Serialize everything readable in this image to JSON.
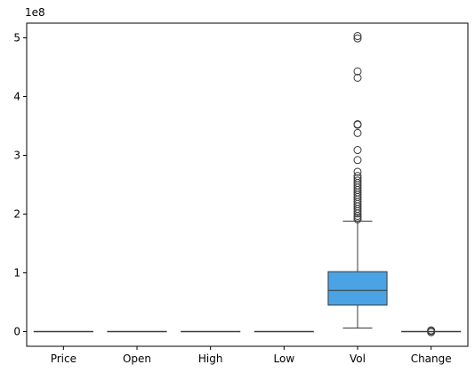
{
  "chart_data": {
    "type": "box",
    "title": "",
    "xlabel": "",
    "ylabel": "",
    "y_offset_label": "1e8",
    "ylim": [
      -0.25,
      5.25
    ],
    "yticks": [
      0,
      1,
      2,
      3,
      4,
      5
    ],
    "ytick_labels": [
      "0",
      "1",
      "2",
      "3",
      "4",
      "5"
    ],
    "grid": false,
    "legend": false,
    "colors": {
      "fill": "#4ba3e3",
      "line": "#3a3a3a",
      "axis": "#000000"
    },
    "categories": [
      "Price",
      "Open",
      "High",
      "Low",
      "Vol",
      "Change"
    ],
    "boxes": [
      {
        "name": "Price",
        "whislo": 0,
        "q1": 0,
        "med": 0,
        "q3": 0,
        "whishi": 0,
        "fliers": []
      },
      {
        "name": "Open",
        "whislo": 0,
        "q1": 0,
        "med": 0,
        "q3": 0,
        "whishi": 0,
        "fliers": []
      },
      {
        "name": "High",
        "whislo": 0,
        "q1": 0,
        "med": 0,
        "q3": 0,
        "whishi": 0,
        "fliers": []
      },
      {
        "name": "Low",
        "whislo": 0,
        "q1": 0,
        "med": 0,
        "q3": 0,
        "whishi": 0,
        "fliers": []
      },
      {
        "name": "Vol",
        "whislo": 0.06,
        "q1": 0.45,
        "med": 0.7,
        "q3": 1.02,
        "whishi": 1.88,
        "fliers": [
          5.03,
          4.99,
          4.43,
          4.32,
          3.53,
          3.52,
          3.38,
          3.09,
          2.92,
          2.72,
          2.65,
          2.61,
          2.57,
          2.53,
          2.49,
          2.45,
          2.41,
          2.37,
          2.33,
          2.29,
          2.25,
          2.21,
          2.17,
          2.13,
          2.09,
          2.05,
          2.01,
          1.97,
          1.94,
          1.91
        ]
      },
      {
        "name": "Change",
        "whislo": 0,
        "q1": 0,
        "med": 0,
        "q3": 0,
        "whishi": 0,
        "fliers": [
          0.02,
          0.01,
          -0.01
        ]
      }
    ]
  }
}
